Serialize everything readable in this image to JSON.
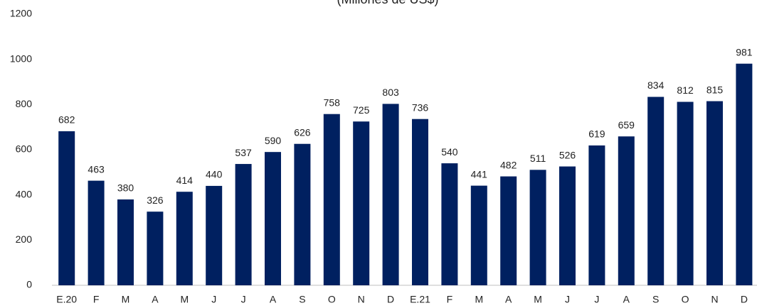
{
  "chart_data": {
    "type": "bar",
    "subtitle": "(Millones de US$)",
    "categories": [
      "E.20",
      "F",
      "M",
      "A",
      "M",
      "J",
      "J",
      "A",
      "S",
      "O",
      "N",
      "D",
      "E.21",
      "F",
      "M",
      "A",
      "M",
      "J",
      "J",
      "A",
      "S",
      "O",
      "N",
      "D"
    ],
    "values": [
      682,
      463,
      380,
      326,
      414,
      440,
      537,
      590,
      626,
      758,
      725,
      803,
      736,
      540,
      441,
      482,
      511,
      526,
      619,
      659,
      834,
      812,
      815,
      981
    ],
    "color": "#002060",
    "ylim": [
      0,
      1200
    ],
    "yticks": [
      0,
      200,
      400,
      600,
      800,
      1000,
      1200
    ],
    "grid": false
  }
}
